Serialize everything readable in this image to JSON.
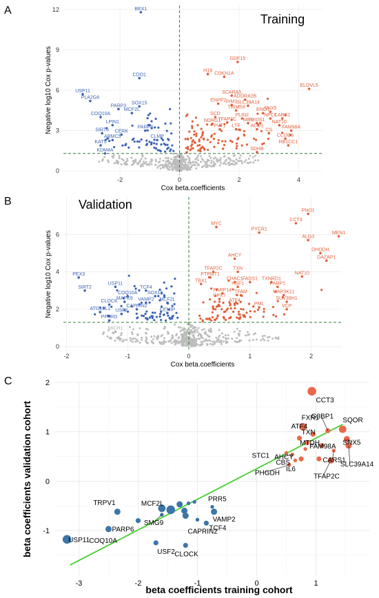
{
  "colors": {
    "down": "#3b63b5",
    "up": "#e0603a",
    "ns": "#bdbdbd",
    "threshold": "#2e7d32",
    "fit": "#45d12f",
    "c_blue": "#3c75a8",
    "c_red": "#e8694a",
    "c_label_line": "#222222"
  },
  "chart_data": [
    {
      "panel": "A",
      "type": "scatter",
      "title": "Training",
      "xlabel": "Cox beta.coefficients",
      "ylabel": "Negative log10 Cox p-values",
      "xlim": [
        -3.9,
        4.8
      ],
      "ylim": [
        -0.3,
        12.3
      ],
      "xticks": [
        -2,
        0,
        2,
        4
      ],
      "yticks": [
        0,
        3,
        6,
        9,
        12
      ],
      "grid": true,
      "threshold_y": 1.3,
      "threshold_x": 0,
      "labeled_points": [
        {
          "label": "BEX1",
          "x": -1.3,
          "y": 11.8,
          "group": "down"
        },
        {
          "label": "USP11",
          "x": -3.25,
          "y": 5.7,
          "group": "down"
        },
        {
          "label": "PLA2G6",
          "x": -3.0,
          "y": 5.2,
          "group": "down"
        },
        {
          "label": "CDO1",
          "x": -1.35,
          "y": 6.9,
          "group": "down"
        },
        {
          "label": "PARP3",
          "x": -2.05,
          "y": 4.6,
          "group": "down"
        },
        {
          "label": "SOX15",
          "x": -1.35,
          "y": 4.8,
          "group": "down"
        },
        {
          "label": "MCF2L",
          "x": -1.6,
          "y": 4.3,
          "group": "down"
        },
        {
          "label": "COQ10A",
          "x": -2.65,
          "y": 4.0,
          "group": "down"
        },
        {
          "label": "LPIN1",
          "x": -2.25,
          "y": 3.4,
          "group": "down"
        },
        {
          "label": "SIRT6",
          "x": -2.6,
          "y": 2.8,
          "group": "down"
        },
        {
          "label": "PARP8",
          "x": -1.15,
          "y": 3.0,
          "group": "down"
        },
        {
          "label": "CERK",
          "x": -1.95,
          "y": 2.7,
          "group": "down"
        },
        {
          "label": "ARMC5",
          "x": -2.25,
          "y": 2.3,
          "group": "down"
        },
        {
          "label": "CLMP",
          "x": -0.75,
          "y": 2.3,
          "group": "down"
        },
        {
          "label": "KAT5",
          "x": -2.65,
          "y": 1.9,
          "group": "down"
        },
        {
          "label": "KDM4A",
          "x": -2.5,
          "y": 1.3,
          "group": "down"
        },
        {
          "label": "GDF15",
          "x": 1.95,
          "y": 8.1,
          "group": "up"
        },
        {
          "label": "H19",
          "x": 0.95,
          "y": 7.2,
          "group": "up"
        },
        {
          "label": "CDKN1A",
          "x": 1.5,
          "y": 7.0,
          "group": "up"
        },
        {
          "label": "ELOVL5",
          "x": 4.35,
          "y": 6.1,
          "group": "up"
        },
        {
          "label": "SCARA5",
          "x": 1.75,
          "y": 5.6,
          "group": "up"
        },
        {
          "label": "ADORA2B",
          "x": 2.2,
          "y": 5.3,
          "group": "up"
        },
        {
          "label": "ENPP2",
          "x": 1.3,
          "y": 5.0,
          "group": "up"
        },
        {
          "label": "PIM1",
          "x": 1.75,
          "y": 4.9,
          "group": "up"
        },
        {
          "label": "SLC39A14",
          "x": 2.3,
          "y": 4.85,
          "group": "up"
        },
        {
          "label": "TRIM59",
          "x": 1.9,
          "y": 4.5,
          "group": "up"
        },
        {
          "label": "SNX5",
          "x": 3.05,
          "y": 4.4,
          "group": "up"
        },
        {
          "label": "ENO1",
          "x": 2.8,
          "y": 4.3,
          "group": "up"
        },
        {
          "label": "SCD",
          "x": 1.2,
          "y": 4.0,
          "group": "up"
        },
        {
          "label": "PLIN2",
          "x": 2.1,
          "y": 3.9,
          "group": "up"
        },
        {
          "label": "NPC1",
          "x": 3.05,
          "y": 3.9,
          "group": "up"
        },
        {
          "label": "CARS1",
          "x": 3.45,
          "y": 3.9,
          "group": "up"
        },
        {
          "label": "NDRG1",
          "x": 1.1,
          "y": 3.5,
          "group": "up"
        },
        {
          "label": "TFAP2C",
          "x": 1.6,
          "y": 3.6,
          "group": "up"
        },
        {
          "label": "ME1",
          "x": 2.3,
          "y": 3.55,
          "group": "up"
        },
        {
          "label": "PEDS1",
          "x": 2.6,
          "y": 3.55,
          "group": "up"
        },
        {
          "label": "NAT10",
          "x": 3.35,
          "y": 3.4,
          "group": "up"
        },
        {
          "label": "PVT1",
          "x": 1.35,
          "y": 3.1,
          "group": "up"
        },
        {
          "label": "LTF",
          "x": 1.9,
          "y": 3.1,
          "group": "up"
        },
        {
          "label": "ACO1",
          "x": 2.6,
          "y": 3.1,
          "group": "up"
        },
        {
          "label": "FAM98A",
          "x": 3.75,
          "y": 3.0,
          "group": "up"
        },
        {
          "label": "CS",
          "x": 3.0,
          "y": 2.8,
          "group": "up"
        },
        {
          "label": "CCDC6",
          "x": 3.55,
          "y": 2.4,
          "group": "up"
        },
        {
          "label": "RB1CC1",
          "x": 3.65,
          "y": 1.9,
          "group": "up"
        },
        {
          "label": "SDHB",
          "x": 2.6,
          "y": 1.4,
          "group": "up"
        }
      ]
    },
    {
      "panel": "B",
      "type": "scatter",
      "title": "Validation",
      "xlabel": "Cox beta.coefficients",
      "ylabel": "Negative log10 Cox p-values",
      "xlim": [
        -2.05,
        2.5
      ],
      "ylim": [
        -0.25,
        8.0
      ],
      "xticks": [
        -2,
        -1,
        0,
        1,
        2
      ],
      "yticks": [
        0,
        2,
        4,
        6
      ],
      "grid": true,
      "threshold_y": 1.3,
      "threshold_x": 0,
      "labeled_points": [
        {
          "label": "PEX3",
          "x": -1.8,
          "y": 3.7,
          "group": "down"
        },
        {
          "label": "SIRT2",
          "x": -1.7,
          "y": 3.0,
          "group": "down"
        },
        {
          "label": "USP11",
          "x": -1.2,
          "y": 3.2,
          "group": "down"
        },
        {
          "label": "TCF4",
          "x": -0.7,
          "y": 3.0,
          "group": "down"
        },
        {
          "label": "COQ10A",
          "x": -1.0,
          "y": 2.7,
          "group": "down"
        },
        {
          "label": "SOX15",
          "x": -0.55,
          "y": 2.7,
          "group": "down"
        },
        {
          "label": "CLOCK",
          "x": -1.3,
          "y": 2.25,
          "group": "down"
        },
        {
          "label": "MAPK9",
          "x": -1.05,
          "y": 2.4,
          "group": "down"
        },
        {
          "label": "VAMP2",
          "x": -0.7,
          "y": 2.35,
          "group": "down"
        },
        {
          "label": "MCF2L",
          "x": -0.35,
          "y": 2.35,
          "group": "down"
        },
        {
          "label": "CAPRIN2",
          "x": -0.85,
          "y": 2.0,
          "group": "down"
        },
        {
          "label": "CEMIP",
          "x": -0.35,
          "y": 1.8,
          "group": "down"
        },
        {
          "label": "ATG16L1",
          "x": -1.45,
          "y": 1.85,
          "group": "down"
        },
        {
          "label": "USF2",
          "x": -1.1,
          "y": 1.75,
          "group": "down"
        },
        {
          "label": "PPARD",
          "x": -1.3,
          "y": 1.4,
          "group": "down"
        },
        {
          "label": "MICH1",
          "x": -1.2,
          "y": 0.8,
          "group": "ns"
        },
        {
          "label": "PNO1",
          "x": 1.95,
          "y": 7.1,
          "group": "up"
        },
        {
          "label": "CCT3",
          "x": 1.75,
          "y": 6.6,
          "group": "up"
        },
        {
          "label": "MYC",
          "x": 0.45,
          "y": 6.4,
          "group": "up"
        },
        {
          "label": "PYCR1",
          "x": 1.15,
          "y": 6.1,
          "group": "up"
        },
        {
          "label": "MEN1",
          "x": 2.45,
          "y": 5.9,
          "group": "up"
        },
        {
          "label": "ALG3",
          "x": 1.95,
          "y": 5.7,
          "group": "up"
        },
        {
          "label": "DHODH",
          "x": 2.15,
          "y": 5.0,
          "group": "up"
        },
        {
          "label": "DAZAP1",
          "x": 2.25,
          "y": 4.6,
          "group": "up"
        },
        {
          "label": "AHCY",
          "x": 0.75,
          "y": 4.7,
          "group": "up"
        },
        {
          "label": "TFAP2C",
          "x": 0.4,
          "y": 4.0,
          "group": "up"
        },
        {
          "label": "TXN",
          "x": 0.8,
          "y": 4.0,
          "group": "up"
        },
        {
          "label": "PTPMT1",
          "x": 0.35,
          "y": 3.7,
          "group": "up"
        },
        {
          "label": "NAT10",
          "x": 1.85,
          "y": 3.75,
          "group": "up"
        },
        {
          "label": "CHAC1",
          "x": 0.75,
          "y": 3.45,
          "group": "up"
        },
        {
          "label": "FADS1",
          "x": 1.0,
          "y": 3.45,
          "group": "up"
        },
        {
          "label": "TXNRD1",
          "x": 1.35,
          "y": 3.45,
          "group": "up"
        },
        {
          "label": "TBX1",
          "x": 0.2,
          "y": 3.35,
          "group": "up"
        },
        {
          "label": "HSF1",
          "x": 0.8,
          "y": 3.2,
          "group": "up"
        },
        {
          "label": "PARP1",
          "x": 1.45,
          "y": 3.2,
          "group": "up"
        },
        {
          "label": "PARP14",
          "x": 0.55,
          "y": 2.85,
          "group": "up"
        },
        {
          "label": "TFAM",
          "x": 0.85,
          "y": 2.75,
          "group": "up"
        },
        {
          "label": "MAP3K11",
          "x": 1.55,
          "y": 2.75,
          "group": "up"
        },
        {
          "label": "GPX7",
          "x": 0.5,
          "y": 2.55,
          "group": "up"
        },
        {
          "label": "ATF4",
          "x": 0.75,
          "y": 2.3,
          "group": "up"
        },
        {
          "label": "SUV39H1",
          "x": 1.6,
          "y": 2.4,
          "group": "up"
        },
        {
          "label": "PML",
          "x": 1.15,
          "y": 2.1,
          "group": "up"
        },
        {
          "label": "VCP",
          "x": 1.6,
          "y": 2.0,
          "group": "up"
        }
      ]
    },
    {
      "panel": "C",
      "type": "scatter",
      "xlabel": "beta coefficients training cohort",
      "ylabel": "beta coefficients validation cohort",
      "xlim": [
        -3.4,
        1.9
      ],
      "ylim": [
        -1.92,
        2.0
      ],
      "xticks": [
        -3,
        -2,
        -1,
        0,
        1
      ],
      "yticks": [
        -1,
        0,
        1,
        2
      ],
      "grid": true,
      "fit_line": {
        "x": [
          -3.15,
          1.45
        ],
        "y": [
          -1.7,
          1.15
        ]
      },
      "points": [
        {
          "label": "CCT3",
          "x": 0.93,
          "y": 1.82,
          "size": 7,
          "group": "up"
        },
        {
          "label": "FXR1",
          "x": 0.78,
          "y": 1.1,
          "size": 6,
          "group": "up"
        },
        {
          "label": "ATF4",
          "x": 0.72,
          "y": 0.87,
          "size": 4,
          "group": "up"
        },
        {
          "label": "TXN",
          "x": 0.85,
          "y": 0.78,
          "size": 4,
          "group": "up"
        },
        {
          "label": "G3BP1",
          "x": 1.2,
          "y": 1.02,
          "size": 4,
          "group": "up"
        },
        {
          "label": "SQOR",
          "x": 1.45,
          "y": 1.05,
          "size": 6,
          "group": "up"
        },
        {
          "label": "FAM98A",
          "x": 1.1,
          "y": 0.72,
          "size": 4,
          "group": "up"
        },
        {
          "label": "SNX5",
          "x": 1.52,
          "y": 0.85,
          "size": 5,
          "group": "up"
        },
        {
          "label": "MTDH",
          "x": 0.82,
          "y": 0.65,
          "size": 3,
          "group": "up"
        },
        {
          "label": "CARS1",
          "x": 1.3,
          "y": 0.62,
          "size": 3,
          "group": "up"
        },
        {
          "label": "STC1",
          "x": 0.5,
          "y": 0.57,
          "size": 3,
          "group": "up"
        },
        {
          "label": "AHCY",
          "x": 0.6,
          "y": 0.54,
          "size": 3,
          "group": "up"
        },
        {
          "label": "SLC39A14",
          "x": 1.55,
          "y": 0.72,
          "size": 5,
          "group": "up"
        },
        {
          "label": "CBS",
          "x": 0.65,
          "y": 0.42,
          "size": 3,
          "group": "up"
        },
        {
          "label": "TFAP2C",
          "x": 1.25,
          "y": 0.42,
          "size": 5,
          "group": "up"
        },
        {
          "label": "IL6",
          "x": 0.75,
          "y": 0.45,
          "size": 4,
          "group": "up"
        },
        {
          "label": "PHGDH",
          "x": 0.55,
          "y": 0.33,
          "size": 3,
          "group": "up"
        },
        {
          "label": "",
          "x": 1.05,
          "y": 0.45,
          "size": 4,
          "group": "up"
        },
        {
          "label": "",
          "x": 0.95,
          "y": 0.95,
          "size": 4,
          "group": "up"
        },
        {
          "label": "USP11",
          "x": -3.2,
          "y": -1.18,
          "size": 7,
          "group": "down"
        },
        {
          "label": "COQ10A",
          "x": -2.5,
          "y": -0.97,
          "size": 5,
          "group": "down"
        },
        {
          "label": "PARP6",
          "x": -2.0,
          "y": -0.8,
          "size": 4,
          "group": "down"
        },
        {
          "label": "TRPV1",
          "x": -2.35,
          "y": -0.62,
          "size": 5,
          "group": "down"
        },
        {
          "label": "MCF2L",
          "x": -1.6,
          "y": -0.55,
          "size": 6,
          "group": "down"
        },
        {
          "label": "",
          "x": -1.45,
          "y": -0.58,
          "size": 7,
          "group": "down"
        },
        {
          "label": "",
          "x": -1.3,
          "y": -0.47,
          "size": 5,
          "group": "down"
        },
        {
          "label": "",
          "x": -1.22,
          "y": -0.6,
          "size": 5,
          "group": "down"
        },
        {
          "label": "",
          "x": -1.15,
          "y": -0.45,
          "size": 3,
          "group": "down"
        },
        {
          "label": "",
          "x": -1.05,
          "y": -0.42,
          "size": 3,
          "group": "down"
        },
        {
          "label": "SMG9",
          "x": -1.6,
          "y": -0.68,
          "size": 3,
          "group": "down"
        },
        {
          "label": "",
          "x": -1.2,
          "y": -0.7,
          "size": 5,
          "group": "down"
        },
        {
          "label": "PRR5",
          "x": -0.75,
          "y": -0.52,
          "size": 3,
          "group": "down"
        },
        {
          "label": "VAMP2",
          "x": -0.72,
          "y": -0.62,
          "size": 5,
          "group": "down"
        },
        {
          "label": "TCF4",
          "x": -0.85,
          "y": -0.85,
          "size": 4,
          "group": "down"
        },
        {
          "label": "CAPRIN2",
          "x": -1.0,
          "y": -0.78,
          "size": 3,
          "group": "down"
        },
        {
          "label": "USF2",
          "x": -1.7,
          "y": -1.25,
          "size": 4,
          "group": "down"
        },
        {
          "label": "CLOCK",
          "x": -1.2,
          "y": -1.3,
          "size": 4,
          "group": "down"
        }
      ]
    }
  ]
}
